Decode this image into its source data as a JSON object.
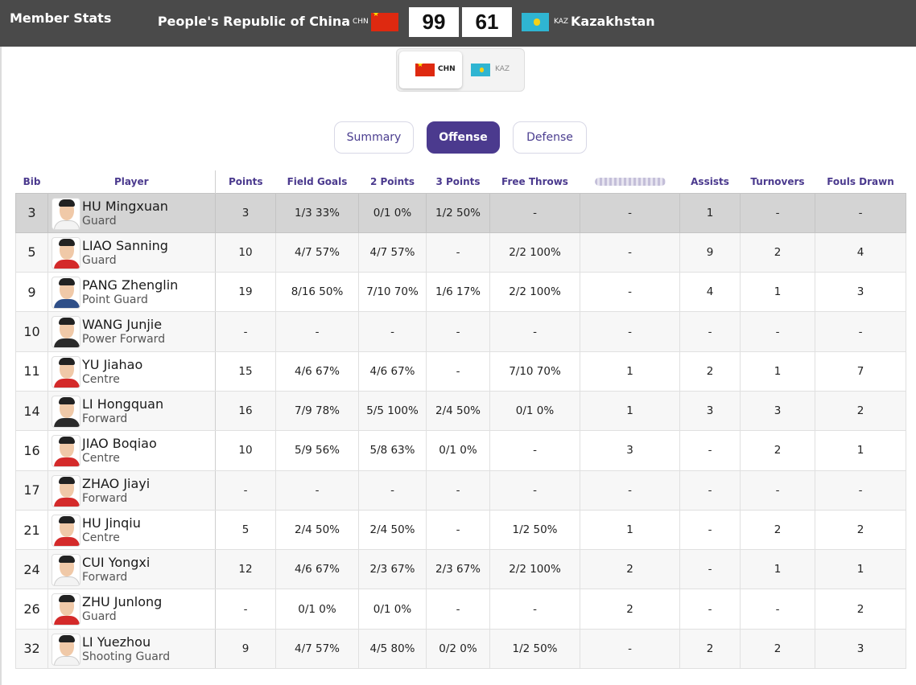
{
  "header": {
    "title": "Member Stats",
    "home": {
      "name": "People's Republic of China",
      "code": "CHN",
      "score": "99"
    },
    "away": {
      "name": "Kazakhstan",
      "code": "KAZ",
      "score": "61"
    }
  },
  "team_switch": {
    "home_code": "CHN",
    "away_code": "KAZ"
  },
  "tabs": {
    "summary": "Summary",
    "offense": "Offense",
    "defense": "Defense"
  },
  "columns": [
    "Bib",
    "Player",
    "Points",
    "Field Goals",
    "2 Points",
    "3 Points",
    "Free Throws",
    "",
    "Assists",
    "Turnovers",
    "Fouls Drawn"
  ],
  "rows": [
    {
      "bib": "3",
      "name": "HU Mingxuan",
      "pos": "Guard",
      "pts": "3",
      "fg": "1/3 33%",
      "p2": "0/1 0%",
      "p3": "1/2 50%",
      "ft": "-",
      "x": "-",
      "ast": "1",
      "to": "-",
      "fd": "-"
    },
    {
      "bib": "5",
      "name": "LIAO Sanning",
      "pos": "Guard",
      "pts": "10",
      "fg": "4/7 57%",
      "p2": "4/7 57%",
      "p3": "-",
      "ft": "2/2 100%",
      "x": "-",
      "ast": "9",
      "to": "2",
      "fd": "4"
    },
    {
      "bib": "9",
      "name": "PANG Zhenglin",
      "pos": "Point Guard",
      "pts": "19",
      "fg": "8/16 50%",
      "p2": "7/10 70%",
      "p3": "1/6 17%",
      "ft": "2/2 100%",
      "x": "-",
      "ast": "4",
      "to": "1",
      "fd": "3"
    },
    {
      "bib": "10",
      "name": "WANG Junjie",
      "pos": "Power Forward",
      "pts": "-",
      "fg": "-",
      "p2": "-",
      "p3": "-",
      "ft": "-",
      "x": "-",
      "ast": "-",
      "to": "-",
      "fd": "-"
    },
    {
      "bib": "11",
      "name": "YU Jiahao",
      "pos": "Centre",
      "pts": "15",
      "fg": "4/6 67%",
      "p2": "4/6 67%",
      "p3": "-",
      "ft": "7/10 70%",
      "x": "1",
      "ast": "2",
      "to": "1",
      "fd": "7"
    },
    {
      "bib": "14",
      "name": "LI Hongquan",
      "pos": "Forward",
      "pts": "16",
      "fg": "7/9 78%",
      "p2": "5/5 100%",
      "p3": "2/4 50%",
      "ft": "0/1 0%",
      "x": "1",
      "ast": "3",
      "to": "3",
      "fd": "2"
    },
    {
      "bib": "16",
      "name": "JIAO Boqiao",
      "pos": "Centre",
      "pts": "10",
      "fg": "5/9 56%",
      "p2": "5/8 63%",
      "p3": "0/1 0%",
      "ft": "-",
      "x": "3",
      "ast": "-",
      "to": "2",
      "fd": "1"
    },
    {
      "bib": "17",
      "name": "ZHAO Jiayi",
      "pos": "Forward",
      "pts": "-",
      "fg": "-",
      "p2": "-",
      "p3": "-",
      "ft": "-",
      "x": "-",
      "ast": "-",
      "to": "-",
      "fd": "-"
    },
    {
      "bib": "21",
      "name": "HU Jinqiu",
      "pos": "Centre",
      "pts": "5",
      "fg": "2/4 50%",
      "p2": "2/4 50%",
      "p3": "-",
      "ft": "1/2 50%",
      "x": "1",
      "ast": "-",
      "to": "2",
      "fd": "2"
    },
    {
      "bib": "24",
      "name": "CUI Yongxi",
      "pos": "Forward",
      "pts": "12",
      "fg": "4/6 67%",
      "p2": "2/3 67%",
      "p3": "2/3 67%",
      "ft": "2/2 100%",
      "x": "2",
      "ast": "-",
      "to": "1",
      "fd": "1"
    },
    {
      "bib": "26",
      "name": "ZHU Junlong",
      "pos": "Guard",
      "pts": "-",
      "fg": "0/1 0%",
      "p2": "0/1 0%",
      "p3": "-",
      "ft": "-",
      "x": "2",
      "ast": "-",
      "to": "-",
      "fd": "2"
    },
    {
      "bib": "32",
      "name": "LI Yuezhou",
      "pos": "Shooting Guard",
      "pts": "9",
      "fg": "4/7 57%",
      "p2": "4/5 80%",
      "p3": "0/2 0%",
      "ft": "1/2 50%",
      "x": "-",
      "ast": "2",
      "to": "2",
      "fd": "3"
    }
  ],
  "colors": {
    "header_bg": "#4a4a4a",
    "accent": "#4b3a8e",
    "highlight_row": "#d4d4d4",
    "chn_red": "#de2910",
    "kaz_blue": "#2fb5d2"
  },
  "icons": {
    "home_flag": "china-flag-icon",
    "away_flag": "kazakhstan-flag-icon",
    "player_photo": "player-avatar"
  }
}
